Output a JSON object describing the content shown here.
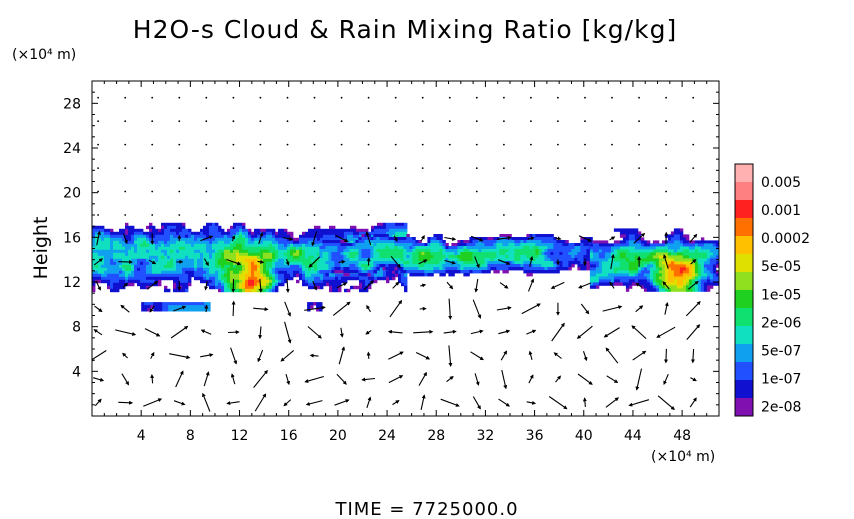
{
  "chart_data": {
    "type": "heatmap",
    "title": "H2O-s Cloud & Rain Mixing Ratio [kg/kg]",
    "ylabel": "Height",
    "x_unit": "(×10⁴ m)",
    "y_unit": "(×10⁴ m)",
    "xlim": [
      0,
      51
    ],
    "ylim": [
      0,
      30
    ],
    "x_ticks": [
      4,
      8,
      12,
      16,
      20,
      24,
      28,
      32,
      36,
      40,
      44,
      48
    ],
    "y_ticks": [
      4,
      8,
      12,
      16,
      20,
      24,
      28
    ],
    "colorbar": {
      "labels": [
        "0.005",
        "0.001",
        "0.0002",
        "5e-05",
        "1e-05",
        "2e-06",
        "5e-07",
        "1e-07",
        "2e-08"
      ],
      "colors": [
        "#ffb0b0",
        "#ff8080",
        "#ff2020",
        "#ff7000",
        "#ffc000",
        "#e0e000",
        "#90e020",
        "#20d020",
        "#10e070",
        "#10e0c0",
        "#10a0f0",
        "#2050ff",
        "#1010d0",
        "#8010b0"
      ]
    },
    "cloud_regions": [
      {
        "x": [
          0,
          25.5
        ],
        "y": [
          11.2,
          17.3
        ],
        "core": [
          12.8,
          11.8
        ]
      },
      {
        "x": [
          18.5,
          40.5
        ],
        "y": [
          12.6,
          16.3
        ]
      },
      {
        "x": [
          40.5,
          51
        ],
        "y": [
          11.3,
          16.8
        ],
        "core": [
          47.5,
          12.0
        ]
      },
      {
        "x": [
          4,
          9.5
        ],
        "y": [
          9.5,
          10.2
        ]
      },
      {
        "x": [
          17.5,
          18.5
        ],
        "y": [
          9.5,
          10.2
        ]
      }
    ],
    "vectors": "wind arrows (grid)"
  },
  "footer": {
    "time_label": "TIME  =  7725000.0"
  }
}
